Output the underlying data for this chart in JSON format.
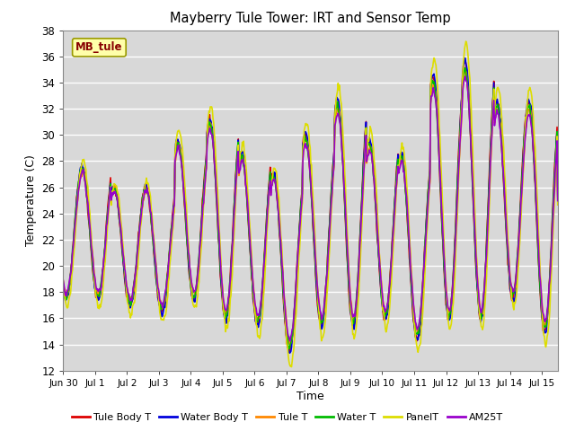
{
  "title": "Mayberry Tule Tower: IRT and Sensor Temp",
  "xlabel": "Time",
  "ylabel": "Temperature (C)",
  "ylim": [
    12,
    38
  ],
  "yticks": [
    12,
    14,
    16,
    18,
    20,
    22,
    24,
    26,
    28,
    30,
    32,
    34,
    36,
    38
  ],
  "fig_background": "#ffffff",
  "plot_background": "#d8d8d8",
  "series": [
    {
      "name": "Tule Body T",
      "color": "#dd0000",
      "lw": 1.2
    },
    {
      "name": "Water Body T",
      "color": "#0000dd",
      "lw": 1.2
    },
    {
      "name": "Tule T",
      "color": "#ff8800",
      "lw": 1.2
    },
    {
      "name": "Water T",
      "color": "#00bb00",
      "lw": 1.2
    },
    {
      "name": "PanelT",
      "color": "#dddd00",
      "lw": 1.2
    },
    {
      "name": "AM25T",
      "color": "#9900cc",
      "lw": 1.2
    }
  ],
  "day_peaks": [
    27.5,
    26.0,
    26.0,
    29.5,
    31.2,
    28.5,
    27.0,
    30.0,
    32.5,
    29.5,
    28.5,
    34.5,
    35.5,
    32.5,
    32.5,
    26.0
  ],
  "day_mins": [
    17.5,
    17.0,
    16.5,
    17.5,
    16.0,
    15.5,
    13.5,
    15.5,
    15.5,
    16.0,
    14.5,
    16.0,
    16.0,
    17.5,
    15.0,
    15.0
  ],
  "peak_offsets": [
    0.0,
    0.3,
    0.6,
    0.15,
    1.0,
    0.4
  ],
  "amplitude_scales": [
    1.0,
    1.02,
    0.94,
    0.97,
    1.12,
    0.91
  ],
  "n_days": 15.5,
  "points_per_day": 48,
  "start_day": -0.5,
  "xtick_positions": [
    -0.5,
    0.5,
    1.5,
    2.5,
    3.5,
    4.5,
    5.5,
    6.5,
    7.5,
    8.5,
    9.5,
    10.5,
    11.5,
    12.5,
    13.5,
    14.5
  ],
  "xtick_labels": [
    "Jun 30",
    "Jul 1",
    "Jul 2",
    "Jul 3",
    "Jul 4",
    "Jul 5",
    "Jul 6",
    "Jul 7",
    "Jul 8",
    "Jul 9",
    "Jul 10",
    "Jul 11",
    "Jul 12",
    "Jul 13",
    "Jul 14",
    "Jul 15"
  ],
  "mb_tule_label": "MB_tule",
  "mb_tule_color": "#880000",
  "mb_tule_bg": "#ffffaa",
  "mb_tule_edge": "#999900"
}
